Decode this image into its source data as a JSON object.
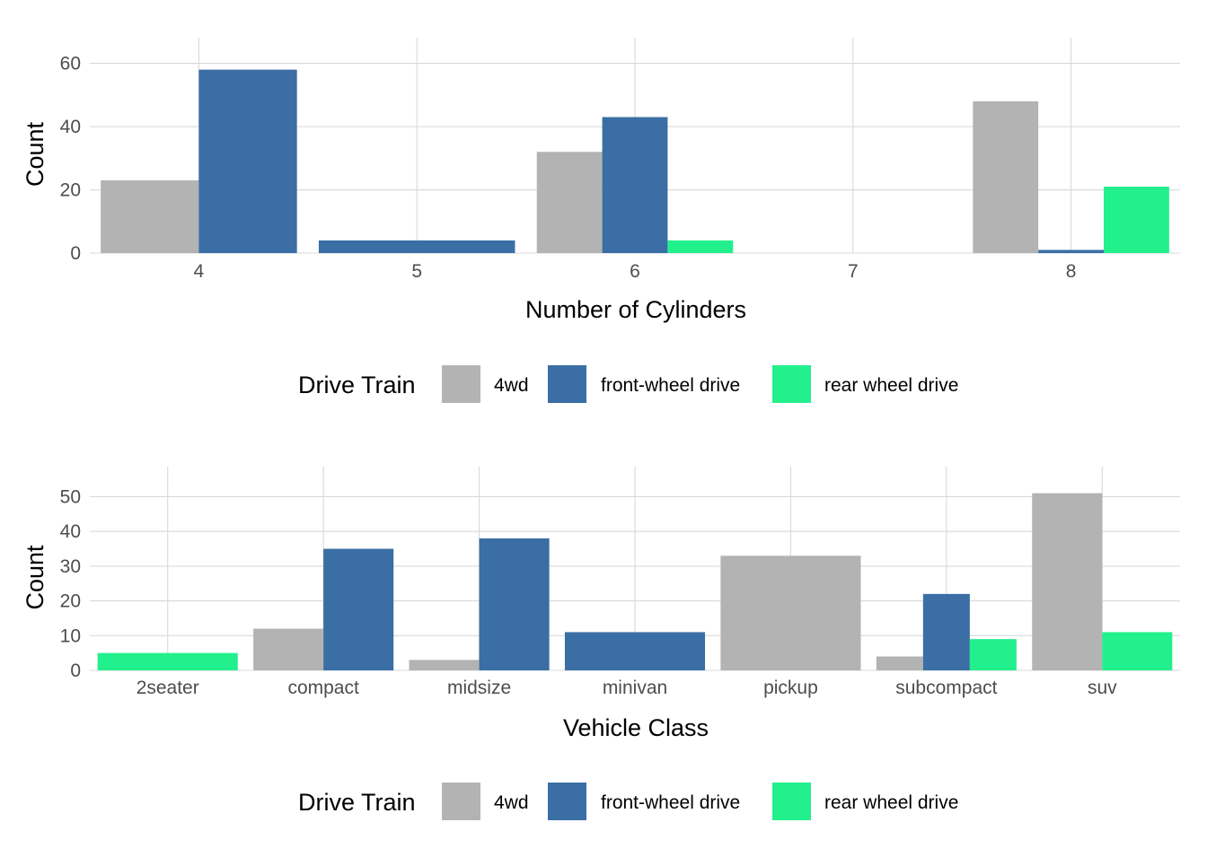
{
  "colors": {
    "4wd": "#b3b3b3",
    "front-wheel drive": "#3a6ea5",
    "rear wheel drive": "#22f08c"
  },
  "chart_data": [
    {
      "type": "bar",
      "xlabel": "Number of Cylinders",
      "ylabel": "Count",
      "ylim": [
        0,
        63
      ],
      "yticks": [
        0,
        20,
        40,
        60
      ],
      "grid": true,
      "legend": {
        "title": "Drive Train",
        "placement": "bottom",
        "items": [
          "4wd",
          "front-wheel drive",
          "rear wheel drive"
        ]
      },
      "categories": [
        "4",
        "5",
        "6",
        "7",
        "8"
      ],
      "series": [
        {
          "name": "4wd",
          "values": [
            23,
            0,
            32,
            0,
            48
          ]
        },
        {
          "name": "front-wheel drive",
          "values": [
            58,
            4,
            43,
            0,
            1
          ]
        },
        {
          "name": "rear wheel drive",
          "values": [
            0,
            0,
            4,
            0,
            21
          ]
        }
      ]
    },
    {
      "type": "bar",
      "xlabel": "Vehicle Class",
      "ylabel": "Count",
      "ylim": [
        0,
        54
      ],
      "yticks": [
        0,
        10,
        20,
        30,
        40,
        50
      ],
      "grid": true,
      "legend": {
        "title": "Drive Train",
        "placement": "bottom",
        "items": [
          "4wd",
          "front-wheel drive",
          "rear wheel drive"
        ]
      },
      "categories": [
        "2seater",
        "compact",
        "midsize",
        "minivan",
        "pickup",
        "subcompact",
        "suv"
      ],
      "series": [
        {
          "name": "4wd",
          "values": [
            0,
            12,
            3,
            0,
            33,
            4,
            51
          ]
        },
        {
          "name": "front-wheel drive",
          "values": [
            0,
            35,
            38,
            11,
            0,
            22,
            0
          ]
        },
        {
          "name": "rear wheel drive",
          "values": [
            5,
            0,
            0,
            0,
            0,
            9,
            11
          ]
        }
      ]
    }
  ]
}
